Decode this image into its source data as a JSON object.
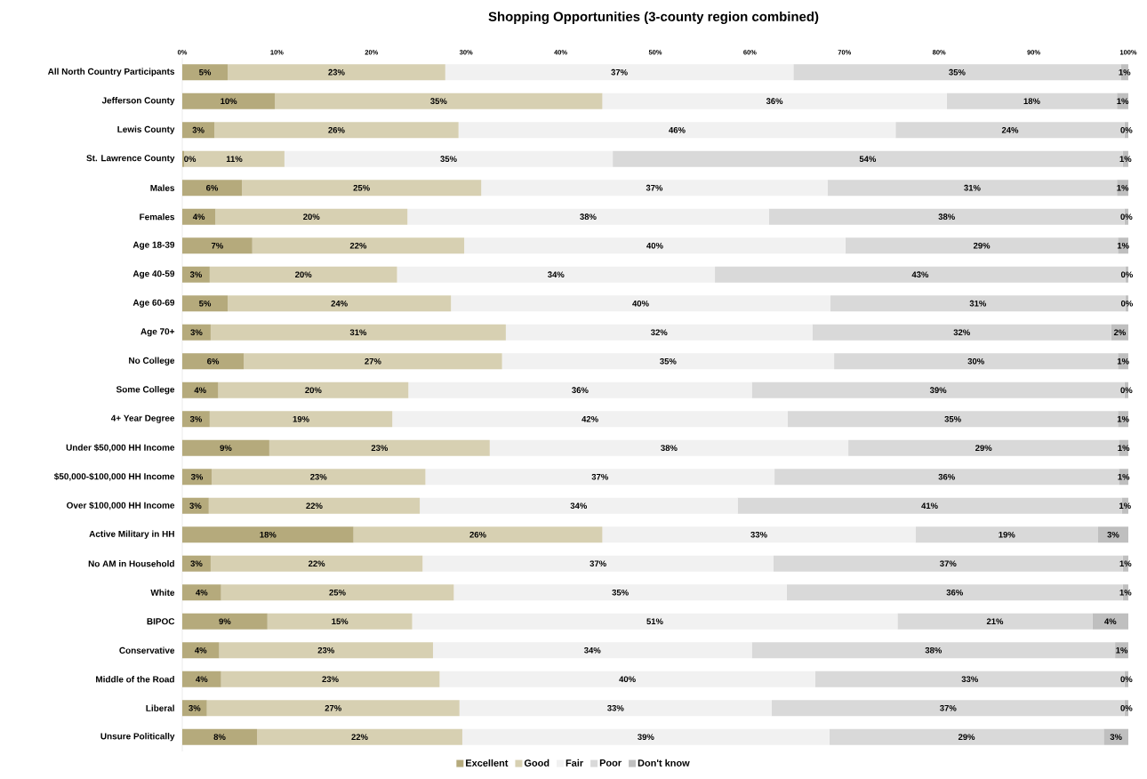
{
  "chart_data": {
    "type": "bar",
    "orientation": "horizontal",
    "stacked": true,
    "title": "Shopping Opportunities (3-county region combined)",
    "categories": [
      "All North Country Participants",
      "Jefferson County",
      "Lewis County",
      "St. Lawrence County",
      "Males",
      "Females",
      "Age 18-39",
      "Age 40-59",
      "Age 60-69",
      "Age 70+",
      "No College",
      "Some College",
      "4+ Year Degree",
      "Under $50,000 HH Income",
      "$50,000-$100,000 HH Income",
      "Over $100,000 HH Income",
      "Active Military in HH",
      "No AM in Household",
      "White",
      "BIPOC",
      "Conservative",
      "Middle of the Road",
      "Liberal",
      "Unsure Politically"
    ],
    "series": [
      {
        "name": "Excellent",
        "color": "#b5aa7c",
        "values": [
          4.8,
          9.8,
          3.4,
          0.2,
          6.3,
          3.5,
          7.4,
          2.9,
          4.8,
          3.0,
          6.5,
          3.8,
          2.9,
          9.2,
          3.1,
          2.8,
          18.1,
          3.0,
          4.1,
          9.0,
          3.9,
          4.1,
          2.6,
          7.9
        ],
        "value_labels": [
          "5%",
          "10%",
          "3%",
          "0%",
          "6%",
          "4%",
          "7%",
          "3%",
          "5%",
          "3%",
          "6%",
          "4%",
          "3%",
          "9%",
          "3%",
          "3%",
          "18%",
          "3%",
          "4%",
          "9%",
          "4%",
          "4%",
          "3%",
          "8%"
        ]
      },
      {
        "name": "Good",
        "color": "#d7d0b2",
        "values": [
          23.0,
          34.6,
          25.8,
          10.6,
          25.3,
          20.3,
          22.4,
          19.8,
          23.6,
          31.2,
          27.3,
          20.1,
          19.3,
          23.3,
          22.6,
          22.3,
          26.3,
          22.4,
          24.6,
          15.3,
          22.6,
          23.1,
          26.7,
          21.7
        ],
        "value_labels": [
          "23%",
          "35%",
          "26%",
          "11%",
          "25%",
          "20%",
          "22%",
          "20%",
          "24%",
          "31%",
          "27%",
          "20%",
          "19%",
          "23%",
          "23%",
          "22%",
          "26%",
          "22%",
          "25%",
          "15%",
          "23%",
          "23%",
          "27%",
          "22%"
        ]
      },
      {
        "name": "Fair",
        "color": "#f1f1f1",
        "values": [
          36.8,
          36.4,
          46.2,
          34.7,
          36.6,
          38.2,
          40.3,
          33.6,
          40.1,
          32.4,
          35.1,
          36.3,
          41.8,
          37.9,
          36.9,
          33.6,
          33.1,
          37.1,
          35.2,
          51.3,
          33.7,
          39.7,
          33.0,
          38.8
        ],
        "value_labels": [
          "37%",
          "36%",
          "46%",
          "35%",
          "37%",
          "38%",
          "40%",
          "34%",
          "40%",
          "32%",
          "35%",
          "36%",
          "42%",
          "38%",
          "37%",
          "34%",
          "33%",
          "37%",
          "35%",
          "51%",
          "34%",
          "40%",
          "33%",
          "39%"
        ]
      },
      {
        "name": "Poor",
        "color": "#d9d9d9",
        "values": [
          34.6,
          18.0,
          24.2,
          53.9,
          30.6,
          37.6,
          28.8,
          43.4,
          31.2,
          31.6,
          30.0,
          39.4,
          34.9,
          28.6,
          36.4,
          40.6,
          19.3,
          36.9,
          35.5,
          20.6,
          38.4,
          32.7,
          37.3,
          29.0
        ],
        "value_labels": [
          "35%",
          "18%",
          "24%",
          "54%",
          "31%",
          "38%",
          "29%",
          "43%",
          "31%",
          "32%",
          "30%",
          "39%",
          "35%",
          "29%",
          "36%",
          "41%",
          "19%",
          "37%",
          "36%",
          "21%",
          "38%",
          "33%",
          "37%",
          "29%"
        ]
      },
      {
        "name": "Don't know",
        "color": "#bfbfbf",
        "values": [
          0.8,
          1.2,
          0.4,
          0.6,
          1.2,
          0.4,
          1.1,
          0.3,
          0.3,
          1.8,
          1.1,
          0.4,
          1.1,
          1.0,
          1.0,
          0.7,
          3.2,
          0.6,
          0.6,
          3.8,
          1.4,
          0.4,
          0.4,
          2.6
        ],
        "value_labels": [
          "1%",
          "1%",
          "0%",
          "1%",
          "1%",
          "0%",
          "1%",
          "0%",
          "0%",
          "2%",
          "1%",
          "0%",
          "1%",
          "1%",
          "1%",
          "1%",
          "3%",
          "1%",
          "1%",
          "4%",
          "1%",
          "0%",
          "0%",
          "3%"
        ]
      }
    ],
    "xlim": [
      0,
      100
    ],
    "xticks": [
      {
        "value": 0,
        "label": "0%"
      },
      {
        "value": 10,
        "label": "10%"
      },
      {
        "value": 20,
        "label": "20%"
      },
      {
        "value": 30,
        "label": "30%"
      },
      {
        "value": 40,
        "label": "40%"
      },
      {
        "value": 50,
        "label": "50%"
      },
      {
        "value": 60,
        "label": "60%"
      },
      {
        "value": 70,
        "label": "70%"
      },
      {
        "value": 80,
        "label": "80%"
      },
      {
        "value": 90,
        "label": "90%"
      },
      {
        "value": 100,
        "label": "100%"
      }
    ],
    "legend": "bottom"
  }
}
